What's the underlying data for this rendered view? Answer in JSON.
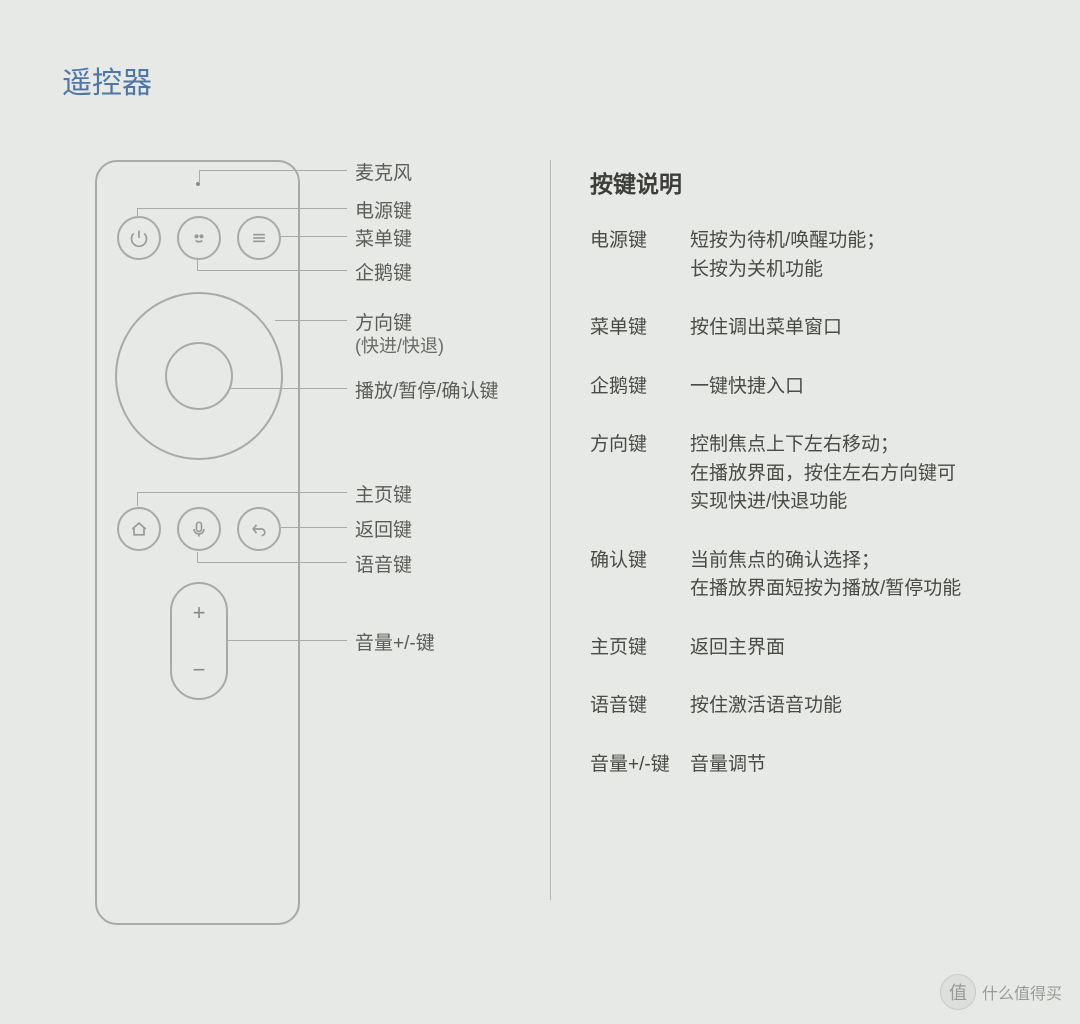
{
  "title": "遥控器",
  "diagram_labels": {
    "mic": "麦克风",
    "power": "电源键",
    "menu": "菜单键",
    "penguin": "企鹅键",
    "dpad": "方向键",
    "dpad_sub": "(快进/快退)",
    "ok": "播放/暂停/确认键",
    "home": "主页键",
    "back": "返回键",
    "voice": "语音键",
    "volume": "音量+/-键"
  },
  "right": {
    "title": "按键说明",
    "rows": [
      {
        "name": "电源键",
        "desc": "短按为待机/唤醒功能；\n长按为关机功能"
      },
      {
        "name": "菜单键",
        "desc": "按住调出菜单窗口"
      },
      {
        "name": "企鹅键",
        "desc": "一键快捷入口"
      },
      {
        "name": "方向键",
        "desc": "控制焦点上下左右移动；\n在播放界面，按住左右方向键可\n实现快进/快退功能"
      },
      {
        "name": "确认键",
        "desc": "当前焦点的确认选择；\n在播放界面短按为播放/暂停功能"
      },
      {
        "name": "主页键",
        "desc": "返回主界面"
      },
      {
        "name": "语音键",
        "desc": "按住激活语音功能"
      },
      {
        "name": "音量+/-键",
        "desc": "音量调节"
      }
    ]
  },
  "watermark": {
    "glyph": "值",
    "text": "什么值得买"
  },
  "colors": {
    "bg": "#e6e9e6",
    "title": "#5076a8",
    "line": "#a8aaa6",
    "text": "#4a4a46"
  }
}
